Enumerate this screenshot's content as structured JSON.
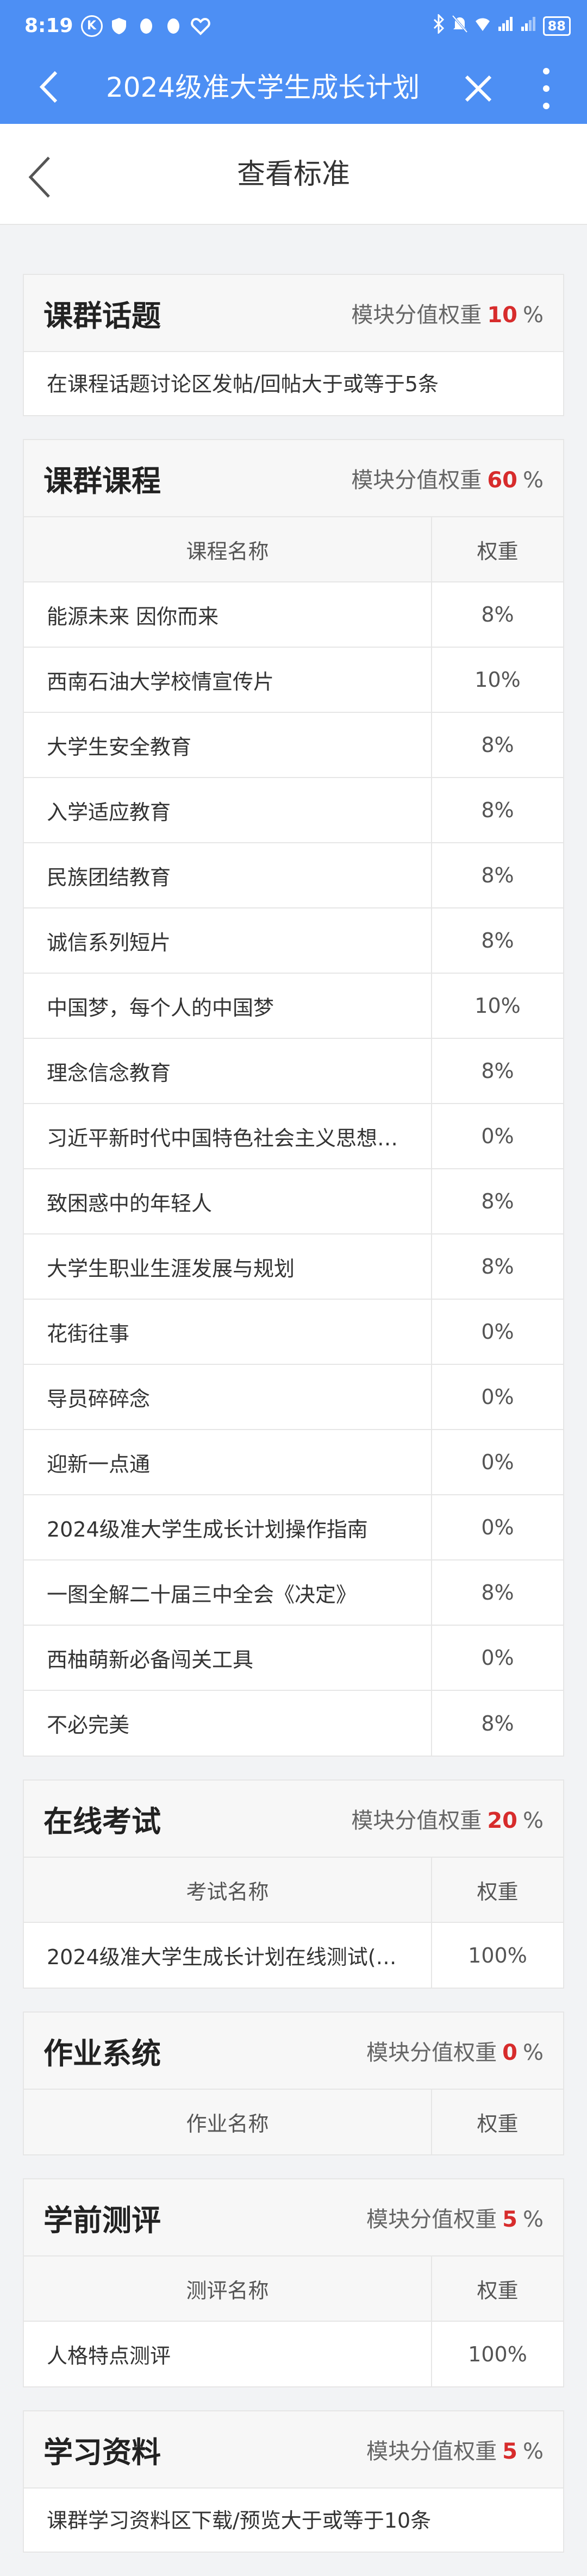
{
  "status_bar": {
    "time": "8:19",
    "left_icons": [
      "k-circle-icon",
      "shield-app-icon",
      "penguin-icon",
      "penguin-icon",
      "heart-app-icon"
    ],
    "right_icons": [
      "bluetooth-icon",
      "mute-icon",
      "wifi-icon",
      "signal-icon",
      "signal-icon"
    ],
    "battery": "88"
  },
  "app_bar": {
    "title": "2024级准大学生成长计划"
  },
  "page_header": {
    "title": "查看标准"
  },
  "accent_color": "#d72c2c",
  "brand_color": "#4d8ff4",
  "weight_label": "模块分值权重",
  "percent_sign": "%",
  "sections": {
    "topic": {
      "title": "课群话题",
      "weight": "10",
      "rule": "在课程话题讨论区发帖/回帖大于或等于5条"
    },
    "courses": {
      "title": "课群课程",
      "weight": "60",
      "col_name": "课程名称",
      "col_weight": "权重",
      "rows": [
        {
          "name": "能源未来 因你而来",
          "weight": "8%"
        },
        {
          "name": "西南石油大学校情宣传片",
          "weight": "10%"
        },
        {
          "name": "大学生安全教育",
          "weight": "8%"
        },
        {
          "name": "入学适应教育",
          "weight": "8%"
        },
        {
          "name": "民族团结教育",
          "weight": "8%"
        },
        {
          "name": "诚信系列短片",
          "weight": "8%"
        },
        {
          "name": "中国梦，每个人的中国梦",
          "weight": "10%"
        },
        {
          "name": "理念信念教育",
          "weight": "8%"
        },
        {
          "name": "习近平新时代中国特色社会主义思想内...",
          "weight": "0%"
        },
        {
          "name": "致困惑中的年轻人",
          "weight": "8%"
        },
        {
          "name": "大学生职业生涯发展与规划",
          "weight": "8%"
        },
        {
          "name": "花街往事",
          "weight": "0%"
        },
        {
          "name": "导员碎碎念",
          "weight": "0%"
        },
        {
          "name": "迎新一点通",
          "weight": "0%"
        },
        {
          "name": "2024级准大学生成长计划操作指南",
          "weight": "0%"
        },
        {
          "name": "一图全解二十届三中全会《决定》",
          "weight": "8%"
        },
        {
          "name": "西柚萌新必备闯关工具",
          "weight": "0%"
        },
        {
          "name": "不必完美",
          "weight": "8%"
        }
      ]
    },
    "exam": {
      "title": "在线考试",
      "weight": "20",
      "col_name": "考试名称",
      "col_weight": "权重",
      "rows": [
        {
          "name": "2024级准大学生成长计划在线测试(更...",
          "weight": "100%"
        }
      ]
    },
    "homework": {
      "title": "作业系统",
      "weight": "0",
      "col_name": "作业名称",
      "col_weight": "权重",
      "rows": []
    },
    "assessment": {
      "title": "学前测评",
      "weight": "5",
      "col_name": "测评名称",
      "col_weight": "权重",
      "rows": [
        {
          "name": "人格特点测评",
          "weight": "100%"
        }
      ]
    },
    "materials": {
      "title": "学习资料",
      "weight": "5",
      "rule": "课群学习资料区下载/预览大于或等于10条"
    }
  }
}
